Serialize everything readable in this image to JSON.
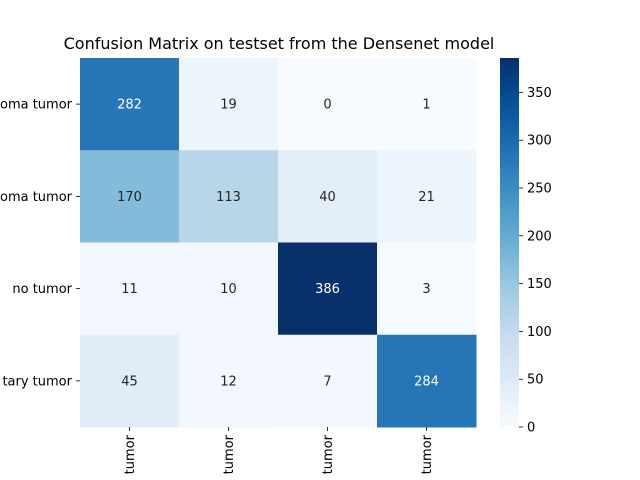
{
  "chart_data": {
    "type": "heatmap",
    "title": "Confusion Matrix on testset from the Densenet model",
    "row_labels": [
      "oma tumor",
      "oma tumor",
      "no tumor",
      "tary tumor"
    ],
    "col_labels": [
      "tumor",
      "tumor",
      "tumor",
      "tumor"
    ],
    "values": [
      [
        282,
        19,
        0,
        1
      ],
      [
        170,
        113,
        40,
        21
      ],
      [
        11,
        10,
        386,
        3
      ],
      [
        45,
        12,
        7,
        284
      ]
    ],
    "colormap": "Blues",
    "color_range": [
      0,
      386
    ],
    "colorbar_ticks": [
      "0",
      "50",
      "100",
      "150",
      "200",
      "250",
      "300",
      "350"
    ],
    "colorbar_tick_values": [
      0,
      50,
      100,
      150,
      200,
      250,
      300,
      350
    ]
  }
}
